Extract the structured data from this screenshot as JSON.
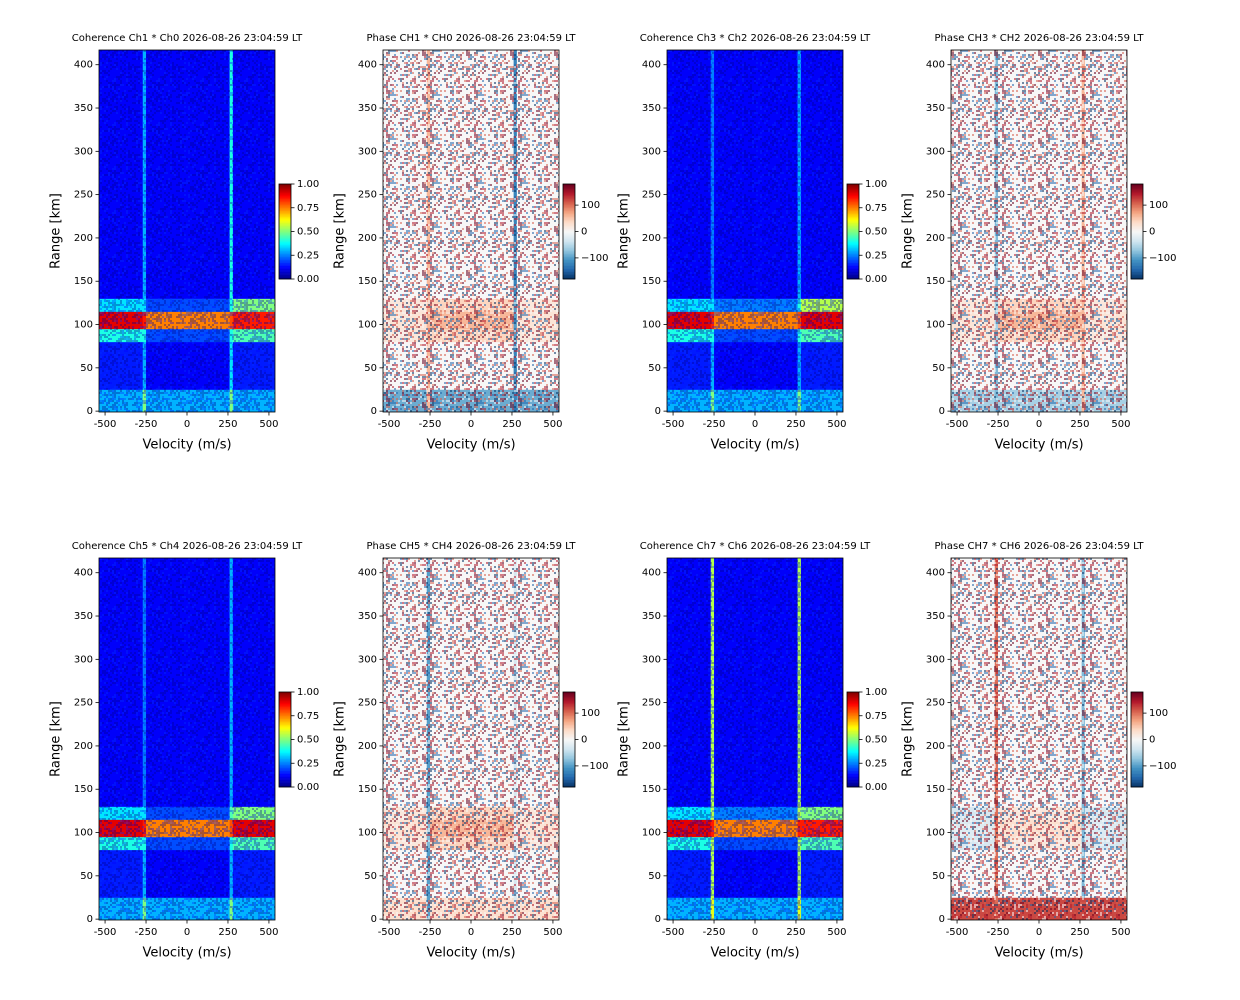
{
  "chart_data": [
    {
      "type": "heatmap",
      "title": "Coherence Ch1 * Ch0 2026-08-26 23:04:59 LT",
      "xlabel": "Velocity (m/s)",
      "ylabel": "Range [km]",
      "colormap": "jet",
      "xlim": [
        -537,
        537
      ],
      "ylim": [
        -1,
        417
      ],
      "xticks": [
        -500,
        -250,
        0,
        250,
        500
      ],
      "yticks": [
        0,
        50,
        100,
        150,
        200,
        250,
        300,
        350,
        400
      ],
      "xbins": [
        -537,
        -270,
        -250,
        260,
        280,
        537
      ],
      "ybins": [
        -1,
        25,
        80,
        95,
        115,
        130,
        417
      ],
      "z": [
        [
          0.3,
          0.5,
          0.3,
          0.5,
          0.3
        ],
        [
          0.15,
          0.3,
          0.12,
          0.35,
          0.15
        ],
        [
          0.4,
          0.4,
          0.2,
          0.4,
          0.45
        ],
        [
          0.9,
          0.85,
          0.75,
          0.8,
          0.85
        ],
        [
          0.35,
          0.35,
          0.2,
          0.4,
          0.5
        ],
        [
          0.12,
          0.3,
          0.12,
          0.4,
          0.12
        ]
      ],
      "clim": [
        0,
        1
      ],
      "cticks": [
        {
          "value": 0,
          "label": "0.00"
        },
        {
          "value": 0.25,
          "label": "0.25"
        },
        {
          "value": 0.5,
          "label": "0.50"
        },
        {
          "value": 0.75,
          "label": "0.75"
        },
        {
          "value": 1,
          "label": "1.00"
        }
      ]
    },
    {
      "type": "heatmap",
      "title": "Phase CH1 * CH0 2026-08-26 23:04:59 LT",
      "xlabel": "Velocity (m/s)",
      "ylabel": "Range [km]",
      "colormap": "RdBu_r",
      "xlim": [
        -537,
        537
      ],
      "ylim": [
        -1,
        417
      ],
      "xticks": [
        -500,
        -250,
        0,
        250,
        500
      ],
      "yticks": [
        0,
        50,
        100,
        150,
        200,
        250,
        300,
        350,
        400
      ],
      "xbins": [
        -537,
        -270,
        -250,
        260,
        280,
        537
      ],
      "ybins": [
        -1,
        25,
        80,
        95,
        115,
        130,
        417
      ],
      "z": [
        [
          -90,
          60,
          -90,
          -120,
          -90
        ],
        [
          0,
          60,
          0,
          -120,
          0
        ],
        [
          20,
          60,
          40,
          -100,
          20
        ],
        [
          25,
          60,
          60,
          -100,
          25
        ],
        [
          20,
          60,
          40,
          -100,
          20
        ],
        [
          0,
          60,
          0,
          -120,
          0
        ]
      ],
      "clim": [
        -180,
        180
      ],
      "cticks": [
        {
          "value": -100,
          "label": "−100"
        },
        0,
        100
      ]
    },
    {
      "type": "heatmap",
      "title": "Coherence Ch3 * Ch2 2026-08-26 23:04:59 LT",
      "xlabel": "Velocity (m/s)",
      "ylabel": "Range [km]",
      "colormap": "jet",
      "xlim": [
        -537,
        537
      ],
      "ylim": [
        -1,
        417
      ],
      "xticks": [
        -500,
        -250,
        0,
        250,
        500
      ],
      "yticks": [
        0,
        50,
        100,
        150,
        200,
        250,
        300,
        350,
        400
      ],
      "xbins": [
        -537,
        -270,
        -250,
        260,
        280,
        537
      ],
      "ybins": [
        -1,
        25,
        80,
        95,
        115,
        130,
        417
      ],
      "z": [
        [
          0.3,
          0.5,
          0.3,
          0.5,
          0.3
        ],
        [
          0.15,
          0.3,
          0.12,
          0.3,
          0.15
        ],
        [
          0.4,
          0.4,
          0.2,
          0.4,
          0.45
        ],
        [
          0.9,
          0.85,
          0.75,
          0.8,
          0.9
        ],
        [
          0.35,
          0.35,
          0.25,
          0.4,
          0.55
        ],
        [
          0.12,
          0.25,
          0.12,
          0.3,
          0.12
        ]
      ],
      "clim": [
        0,
        1
      ],
      "cticks": [
        {
          "value": 0,
          "label": "0.00"
        },
        {
          "value": 0.25,
          "label": "0.25"
        },
        {
          "value": 0.5,
          "label": "0.50"
        },
        {
          "value": 0.75,
          "label": "0.75"
        },
        {
          "value": 1,
          "label": "1.00"
        }
      ]
    },
    {
      "type": "heatmap",
      "title": "Phase CH3 * CH2 2026-08-26 23:04:59 LT",
      "xlabel": "Velocity (m/s)",
      "ylabel": "Range [km]",
      "colormap": "RdBu_r",
      "xlim": [
        -537,
        537
      ],
      "ylim": [
        -1,
        417
      ],
      "xticks": [
        -500,
        -250,
        0,
        250,
        500
      ],
      "yticks": [
        0,
        50,
        100,
        150,
        200,
        250,
        300,
        350,
        400
      ],
      "xbins": [
        -537,
        -270,
        -250,
        260,
        280,
        537
      ],
      "ybins": [
        -1,
        25,
        80,
        95,
        115,
        130,
        417
      ],
      "z": [
        [
          -60,
          -80,
          -60,
          60,
          -60
        ],
        [
          0,
          -80,
          0,
          60,
          0
        ],
        [
          20,
          -60,
          40,
          60,
          20
        ],
        [
          25,
          -60,
          60,
          60,
          25
        ],
        [
          20,
          -60,
          40,
          60,
          20
        ],
        [
          0,
          -80,
          0,
          60,
          0
        ]
      ],
      "clim": [
        -180,
        180
      ],
      "cticks": [
        {
          "value": -100,
          "label": "−100"
        },
        0,
        100
      ]
    },
    {
      "type": "heatmap",
      "title": "Coherence Ch5 * Ch4 2026-08-26 23:04:59 LT",
      "xlabel": "Velocity (m/s)",
      "ylabel": "Range [km]",
      "colormap": "jet",
      "xlim": [
        -537,
        537
      ],
      "ylim": [
        -1,
        417
      ],
      "xticks": [
        -500,
        -250,
        0,
        250,
        500
      ],
      "yticks": [
        0,
        50,
        100,
        150,
        200,
        250,
        300,
        350,
        400
      ],
      "xbins": [
        -537,
        -270,
        -250,
        260,
        280,
        537
      ],
      "ybins": [
        -1,
        25,
        80,
        95,
        115,
        130,
        417
      ],
      "z": [
        [
          0.3,
          0.5,
          0.3,
          0.5,
          0.3
        ],
        [
          0.15,
          0.3,
          0.12,
          0.3,
          0.15
        ],
        [
          0.4,
          0.4,
          0.2,
          0.4,
          0.45
        ],
        [
          0.9,
          0.85,
          0.75,
          0.8,
          0.9
        ],
        [
          0.35,
          0.35,
          0.2,
          0.45,
          0.5
        ],
        [
          0.12,
          0.25,
          0.12,
          0.3,
          0.12
        ]
      ],
      "clim": [
        0,
        1
      ],
      "cticks": [
        {
          "value": 0,
          "label": "0.00"
        },
        {
          "value": 0.25,
          "label": "0.25"
        },
        {
          "value": 0.5,
          "label": "0.50"
        },
        {
          "value": 0.75,
          "label": "0.75"
        },
        {
          "value": 1,
          "label": "1.00"
        }
      ]
    },
    {
      "type": "heatmap",
      "title": "Phase CH5 * CH4 2026-08-26 23:04:59 LT",
      "xlabel": "Velocity (m/s)",
      "ylabel": "Range [km]",
      "colormap": "RdBu_r",
      "xlim": [
        -537,
        537
      ],
      "ylim": [
        -1,
        417
      ],
      "xticks": [
        -500,
        -250,
        0,
        250,
        500
      ],
      "yticks": [
        0,
        50,
        100,
        150,
        200,
        250,
        300,
        350,
        400
      ],
      "xbins": [
        -537,
        -270,
        -250,
        260,
        280,
        537
      ],
      "ybins": [
        -1,
        25,
        80,
        95,
        115,
        130,
        417
      ],
      "z": [
        [
          30,
          -100,
          30,
          -30,
          30
        ],
        [
          0,
          -100,
          0,
          -30,
          0
        ],
        [
          20,
          -80,
          40,
          -20,
          20
        ],
        [
          25,
          -80,
          60,
          -20,
          25
        ],
        [
          20,
          -80,
          40,
          -20,
          20
        ],
        [
          0,
          -100,
          0,
          -30,
          0
        ]
      ],
      "clim": [
        -180,
        180
      ],
      "cticks": [
        {
          "value": -100,
          "label": "−100"
        },
        0,
        100
      ]
    },
    {
      "type": "heatmap",
      "title": "Coherence Ch7 * Ch6 2026-08-26 23:04:59 LT",
      "xlabel": "Velocity (m/s)",
      "ylabel": "Range [km]",
      "colormap": "jet",
      "xlim": [
        -537,
        537
      ],
      "ylim": [
        -1,
        417
      ],
      "xticks": [
        -500,
        -250,
        0,
        250,
        500
      ],
      "yticks": [
        0,
        50,
        100,
        150,
        200,
        250,
        300,
        350,
        400
      ],
      "xbins": [
        -537,
        -270,
        -250,
        260,
        280,
        537
      ],
      "ybins": [
        -1,
        25,
        80,
        95,
        115,
        130,
        417
      ],
      "z": [
        [
          0.3,
          0.6,
          0.3,
          0.6,
          0.3
        ],
        [
          0.15,
          0.55,
          0.12,
          0.55,
          0.15
        ],
        [
          0.4,
          0.55,
          0.2,
          0.55,
          0.45
        ],
        [
          0.9,
          0.85,
          0.75,
          0.85,
          0.85
        ],
        [
          0.35,
          0.55,
          0.25,
          0.55,
          0.5
        ],
        [
          0.12,
          0.55,
          0.12,
          0.55,
          0.12
        ]
      ],
      "clim": [
        0,
        1
      ],
      "cticks": [
        {
          "value": 0,
          "label": "0.00"
        },
        {
          "value": 0.25,
          "label": "0.25"
        },
        {
          "value": 0.5,
          "label": "0.50"
        },
        {
          "value": 0.75,
          "label": "0.75"
        },
        {
          "value": 1,
          "label": "1.00"
        }
      ]
    },
    {
      "type": "heatmap",
      "title": "Phase CH7 * CH6 2026-08-26 23:04:59 LT",
      "xlabel": "Velocity (m/s)",
      "ylabel": "Range [km]",
      "colormap": "RdBu_r",
      "xlim": [
        -537,
        537
      ],
      "ylim": [
        -1,
        417
      ],
      "xticks": [
        -500,
        -250,
        0,
        250,
        500
      ],
      "yticks": [
        0,
        50,
        100,
        150,
        200,
        250,
        300,
        350,
        400
      ],
      "xbins": [
        -537,
        -270,
        -250,
        260,
        280,
        537
      ],
      "ybins": [
        -1,
        25,
        80,
        95,
        115,
        130,
        417
      ],
      "z": [
        [
          120,
          100,
          120,
          120,
          120
        ],
        [
          0,
          100,
          0,
          -80,
          0
        ],
        [
          -30,
          100,
          20,
          -80,
          -30
        ],
        [
          -25,
          100,
          30,
          -80,
          -25
        ],
        [
          -30,
          100,
          20,
          -80,
          -30
        ],
        [
          0,
          100,
          0,
          -80,
          0
        ]
      ],
      "clim": [
        -180,
        180
      ],
      "cticks": [
        {
          "value": -100,
          "label": "−100"
        },
        0,
        100
      ]
    }
  ]
}
